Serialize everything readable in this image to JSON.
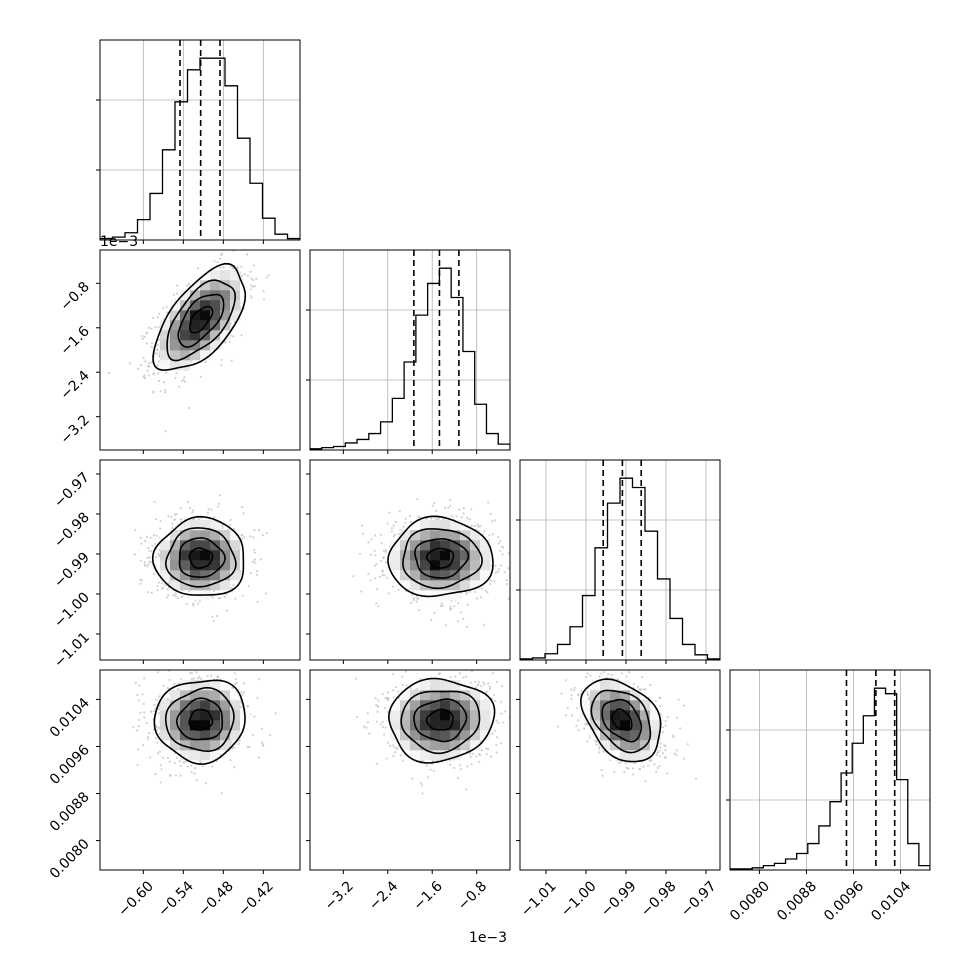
{
  "chart_data": {
    "type": "corner",
    "params": [
      {
        "range": [
          -0.665,
          -0.365
        ],
        "ticks": [
          -0.6,
          -0.54,
          -0.48,
          -0.42
        ],
        "tick_labels": [
          "−0.60",
          "−0.54",
          "−0.48",
          "−0.42"
        ],
        "quantiles": [
          -0.545,
          -0.514,
          -0.485
        ],
        "center": -0.514,
        "sigma": 0.034,
        "hist": [
          1,
          2,
          5,
          14,
          32,
          62,
          95,
          117,
          125,
          125,
          106,
          70,
          39,
          15,
          4,
          1
        ],
        "offset_label": ""
      },
      {
        "range": [
          -3.8,
          -0.2
        ],
        "ticks": [
          -3.2,
          -2.4,
          -1.6,
          -0.8
        ],
        "tick_labels": [
          "−3.2",
          "−2.4",
          "−1.6",
          "−0.8"
        ],
        "quantiles": [
          -1.93,
          -1.47,
          -1.12
        ],
        "center": -1.45,
        "sigma": 0.47,
        "hist": [
          1,
          2,
          3,
          6,
          9,
          14,
          24,
          44,
          75,
          115,
          142,
          155,
          130,
          84,
          39,
          14,
          5
        ],
        "offset_label": "1e−3"
      },
      {
        "range": [
          -1.0165,
          -0.9665
        ],
        "ticks": [
          -1.01,
          -1.0,
          -0.99,
          -0.98,
          -0.97
        ],
        "tick_labels": [
          "−1.01",
          "−1.00",
          "−0.99",
          "−0.98",
          "−0.97"
        ],
        "quantiles": [
          -0.9957,
          -0.9909,
          -0.9862
        ],
        "center": -0.991,
        "sigma": 0.0049,
        "hist": [
          1,
          2,
          6,
          15,
          32,
          62,
          108,
          151,
          175,
          166,
          124,
          78,
          40,
          15,
          5,
          1
        ],
        "offset_label": ""
      },
      {
        "range": [
          0.0075,
          0.0109
        ],
        "ticks": [
          0.008,
          0.0088,
          0.0096,
          0.0104
        ],
        "tick_labels": [
          "0.0080",
          "0.0088",
          "0.0096",
          "0.0104"
        ],
        "quantiles": [
          0.00948,
          0.00998,
          0.0103
        ],
        "center": 0.01005,
        "sigma": 0.00035,
        "hist": [
          1,
          1,
          2,
          4,
          6,
          10,
          15,
          24,
          40,
          62,
          88,
          115,
          140,
          165,
          160,
          82,
          24,
          4
        ],
        "offset_label": ""
      }
    ],
    "correlations": [
      [
        1.0,
        0.6,
        0.0,
        0.05
      ],
      [
        0.6,
        1.0,
        0.0,
        0.05
      ],
      [
        0.0,
        0.0,
        1.0,
        -0.35
      ],
      [
        0.05,
        0.05,
        -0.35,
        1.0
      ]
    ],
    "diag_grid_fractions": [
      0.35,
      0.7
    ],
    "grid": true,
    "quantile_line_style": "dashed",
    "contour_levels_sigma": [
      0.5,
      1.0,
      1.5,
      2.0
    ]
  }
}
